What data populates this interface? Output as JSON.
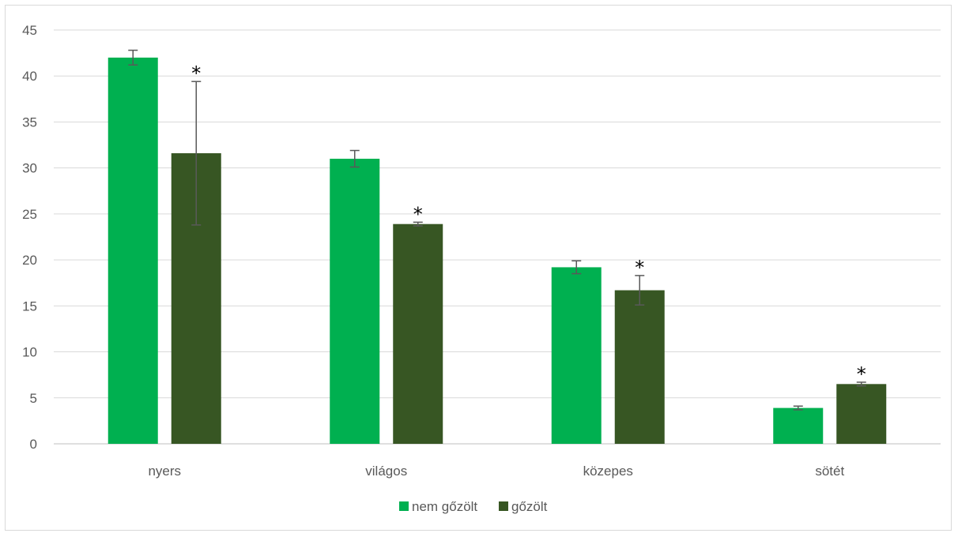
{
  "chart_data": {
    "type": "bar",
    "categories": [
      "nyers",
      "világos",
      "közepes",
      "sötét"
    ],
    "series": [
      {
        "name": "nem gőzölt",
        "color": "#00b050",
        "values": [
          42.0,
          31.0,
          19.2,
          3.9
        ],
        "error": [
          0.8,
          0.9,
          0.7,
          0.2
        ]
      },
      {
        "name": "gőzölt",
        "color": "#375623",
        "values": [
          31.6,
          23.9,
          16.7,
          6.5
        ],
        "error": [
          7.8,
          0.2,
          1.6,
          0.2
        ]
      }
    ],
    "annotations": [
      "*",
      "*",
      "*",
      "*"
    ],
    "ylim": [
      0,
      45
    ],
    "yticks": [
      "0",
      "5",
      "10",
      "15",
      "20",
      "25",
      "30",
      "35",
      "40",
      "45"
    ],
    "grid": true,
    "legend_position": "bottom",
    "xlabel": "",
    "ylabel": ""
  }
}
